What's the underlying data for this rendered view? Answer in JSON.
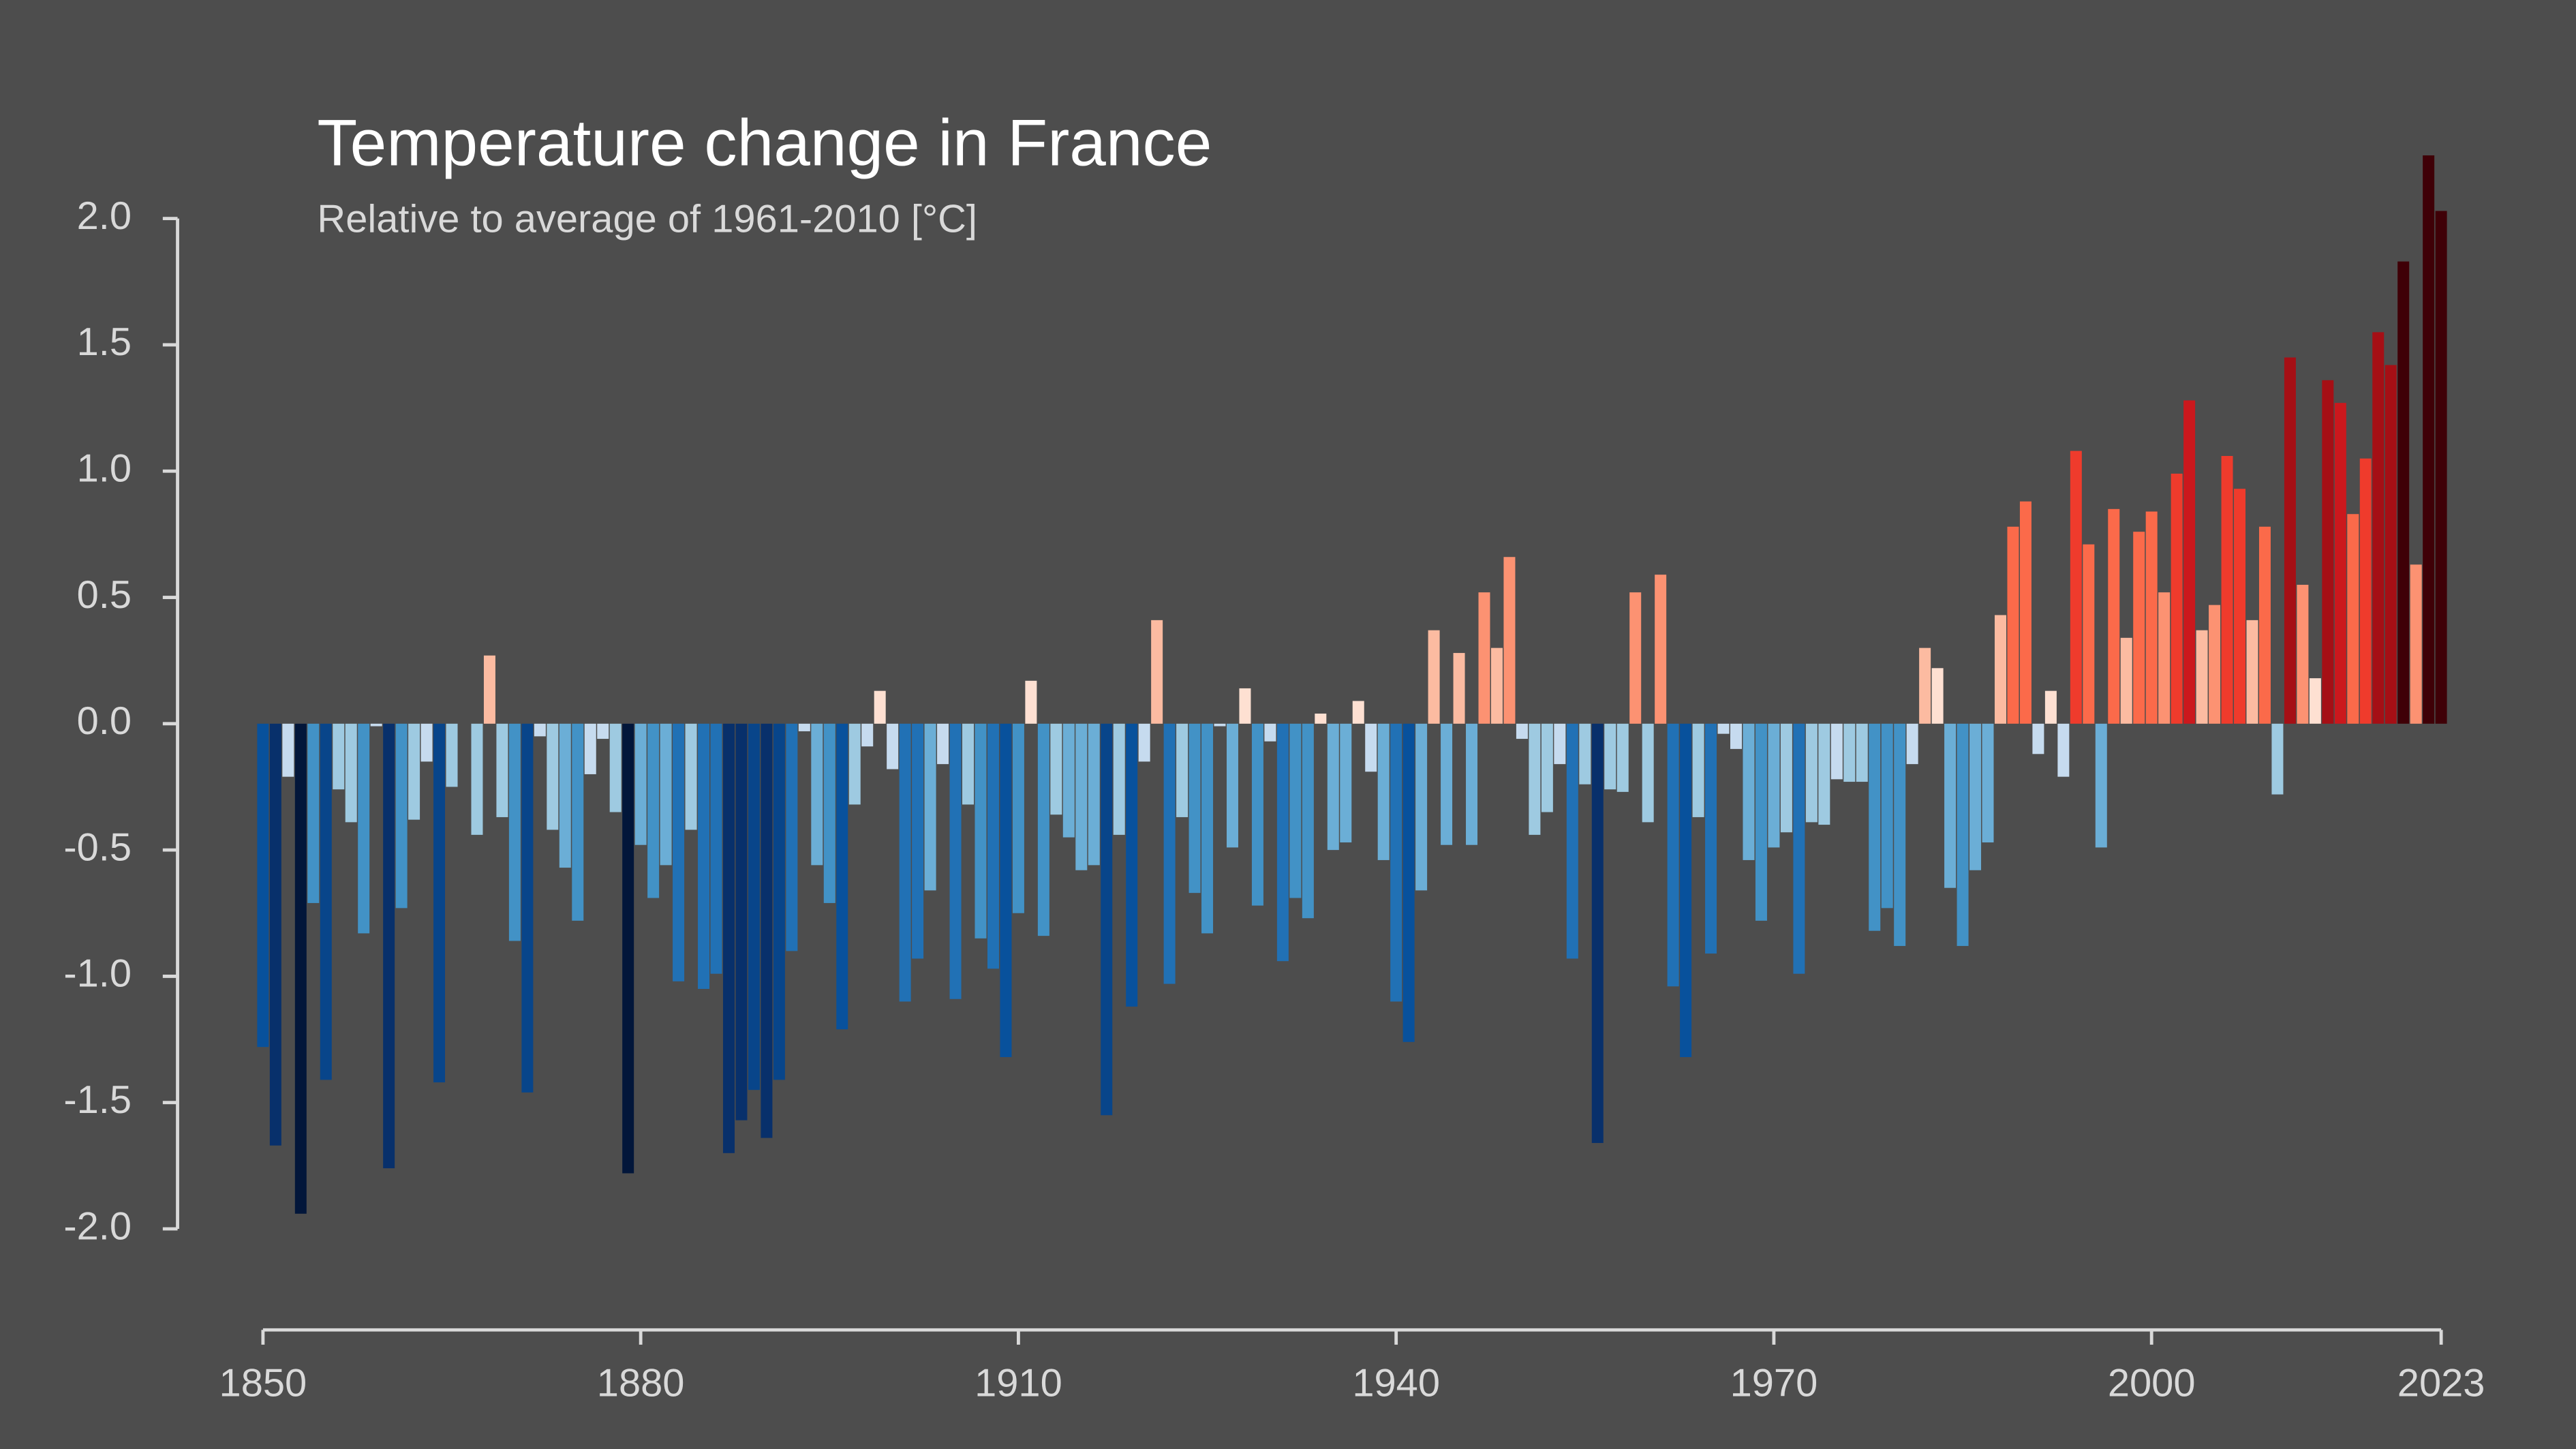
{
  "chart_data": {
    "type": "bar",
    "title": "Temperature change in France",
    "subtitle": "Relative to average of 1961-2010  [°C]",
    "x": [
      1850,
      1851,
      1852,
      1853,
      1854,
      1855,
      1856,
      1857,
      1858,
      1859,
      1860,
      1861,
      1862,
      1863,
      1864,
      1865,
      1866,
      1867,
      1868,
      1869,
      1870,
      1871,
      1872,
      1873,
      1874,
      1875,
      1876,
      1877,
      1878,
      1879,
      1880,
      1881,
      1882,
      1883,
      1884,
      1885,
      1886,
      1887,
      1888,
      1889,
      1890,
      1891,
      1892,
      1893,
      1894,
      1895,
      1896,
      1897,
      1898,
      1899,
      1900,
      1901,
      1902,
      1903,
      1904,
      1905,
      1906,
      1907,
      1908,
      1909,
      1910,
      1911,
      1912,
      1913,
      1914,
      1915,
      1916,
      1917,
      1918,
      1919,
      1920,
      1921,
      1922,
      1923,
      1924,
      1925,
      1926,
      1927,
      1928,
      1929,
      1930,
      1931,
      1932,
      1933,
      1934,
      1935,
      1936,
      1937,
      1938,
      1939,
      1940,
      1941,
      1942,
      1943,
      1944,
      1945,
      1946,
      1947,
      1948,
      1949,
      1950,
      1951,
      1952,
      1953,
      1954,
      1955,
      1956,
      1957,
      1958,
      1959,
      1960,
      1961,
      1962,
      1963,
      1964,
      1965,
      1966,
      1967,
      1968,
      1969,
      1970,
      1971,
      1972,
      1973,
      1974,
      1975,
      1976,
      1977,
      1978,
      1979,
      1980,
      1981,
      1982,
      1983,
      1984,
      1985,
      1986,
      1987,
      1988,
      1989,
      1990,
      1991,
      1992,
      1993,
      1994,
      1995,
      1996,
      1997,
      1998,
      1999,
      2000,
      2001,
      2002,
      2003,
      2004,
      2005,
      2006,
      2007,
      2008,
      2009,
      2010,
      2011,
      2012,
      2013,
      2014,
      2015,
      2016,
      2017,
      2018,
      2019,
      2020,
      2021,
      2022,
      2023
    ],
    "values": [
      -1.28,
      -1.67,
      -0.21,
      -1.94,
      -0.71,
      -1.41,
      -0.26,
      -0.39,
      -0.83,
      -0.01,
      -1.76,
      -0.73,
      -0.38,
      -0.15,
      -1.42,
      -0.25,
      0.0,
      -0.44,
      0.27,
      -0.37,
      -0.86,
      -1.46,
      -0.05,
      -0.42,
      -0.57,
      -0.78,
      -0.2,
      -0.06,
      -0.35,
      -1.78,
      -0.48,
      -0.69,
      -0.56,
      -1.02,
      -0.42,
      -1.05,
      -0.99,
      -1.7,
      -1.57,
      -1.45,
      -1.64,
      -1.41,
      -0.9,
      -0.03,
      -0.56,
      -0.71,
      -1.21,
      -0.32,
      -0.09,
      0.13,
      -0.18,
      -1.1,
      -0.93,
      -0.66,
      -0.16,
      -1.09,
      -0.32,
      -0.85,
      -0.97,
      -1.32,
      -0.75,
      0.17,
      -0.84,
      -0.36,
      -0.45,
      -0.58,
      -0.56,
      -1.55,
      -0.44,
      -1.12,
      -0.15,
      0.41,
      -1.03,
      -0.37,
      -0.67,
      -0.83,
      -0.01,
      -0.49,
      0.14,
      -0.72,
      -0.07,
      -0.94,
      -0.69,
      -0.77,
      0.04,
      -0.5,
      -0.47,
      0.09,
      -0.19,
      -0.54,
      -1.1,
      -1.26,
      -0.66,
      0.37,
      -0.48,
      0.28,
      -0.48,
      0.52,
      0.3,
      0.66,
      -0.06,
      -0.44,
      -0.35,
      -0.16,
      -0.93,
      -0.24,
      -1.66,
      -0.26,
      -0.27,
      0.52,
      -0.39,
      0.59,
      -1.04,
      -1.32,
      -0.37,
      -0.91,
      -0.04,
      -0.1,
      -0.54,
      -0.78,
      -0.49,
      -0.43,
      -0.99,
      -0.39,
      -0.4,
      -0.22,
      -0.23,
      -0.23,
      -0.82,
      -0.73,
      -0.88,
      -0.16,
      0.3,
      0.22,
      -0.65,
      -0.88,
      -0.58,
      -0.47,
      0.43,
      0.78,
      0.88,
      -0.12,
      0.13,
      -0.21,
      1.08,
      0.71,
      -0.49,
      0.85,
      0.34,
      0.76,
      0.84,
      0.52,
      0.99,
      1.28,
      0.37,
      0.47,
      1.06,
      0.93,
      0.41,
      0.78,
      -0.28,
      1.45,
      0.55,
      0.18,
      1.36,
      1.27,
      0.83,
      1.05,
      1.55,
      1.42,
      1.83,
      0.63,
      2.25,
      2.03
    ],
    "colormap": [
      "#02163a",
      "#08306b",
      "#08458a",
      "#08519c",
      "#2171b5",
      "#4292c6",
      "#6baed6",
      "#9ecae1",
      "#c6dbef",
      "#fee0d2",
      "#fcbba1",
      "#fc9272",
      "#fb6a4a",
      "#ef3b2c",
      "#cb181d",
      "#a50f15",
      "#67000d",
      "#3f0007"
    ],
    "xlim": [
      1850,
      2023
    ],
    "xticks": [
      1850,
      1880,
      1910,
      1940,
      1970,
      2000,
      2023
    ],
    "ylim": [
      -2.4,
      2.3
    ],
    "yticks": [
      {
        "value": 2,
        "label": "2.0"
      },
      1.5,
      {
        "value": 1,
        "label": "1.0"
      },
      0.5,
      {
        "value": 0,
        "label": "0.0"
      },
      -0.5,
      {
        "value": -1,
        "label": "-1.0"
      },
      -1.5,
      {
        "value": -2,
        "label": "-2.0"
      }
    ]
  }
}
